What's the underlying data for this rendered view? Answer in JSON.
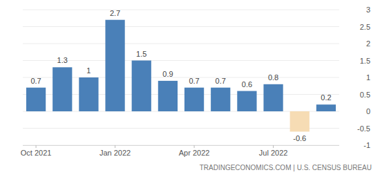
{
  "chart_data": {
    "type": "bar",
    "categories": [
      "Oct 2021",
      null,
      null,
      "Jan 2022",
      null,
      null,
      "Apr 2022",
      null,
      null,
      "Jul 2022",
      null,
      null
    ],
    "values": [
      0.7,
      1.3,
      1,
      2.7,
      1.5,
      0.9,
      0.7,
      0.7,
      0.6,
      0.8,
      -0.6,
      0.2
    ],
    "colors": [
      "#4a80b8",
      "#4a80b8",
      "#4a80b8",
      "#4a80b8",
      "#4a80b8",
      "#4a80b8",
      "#4a80b8",
      "#4a80b8",
      "#4a80b8",
      "#4a80b8",
      "#f6dcb4",
      "#4a80b8"
    ],
    "ylim": [
      -1,
      3
    ],
    "yticks": [
      -1,
      -0.5,
      0,
      0.5,
      1,
      1.5,
      2,
      2.5,
      3
    ],
    "grid": true,
    "data_labels": true,
    "source": "TRADINGECONOMICS.COM | U.S. CENSUS BUREAU"
  }
}
